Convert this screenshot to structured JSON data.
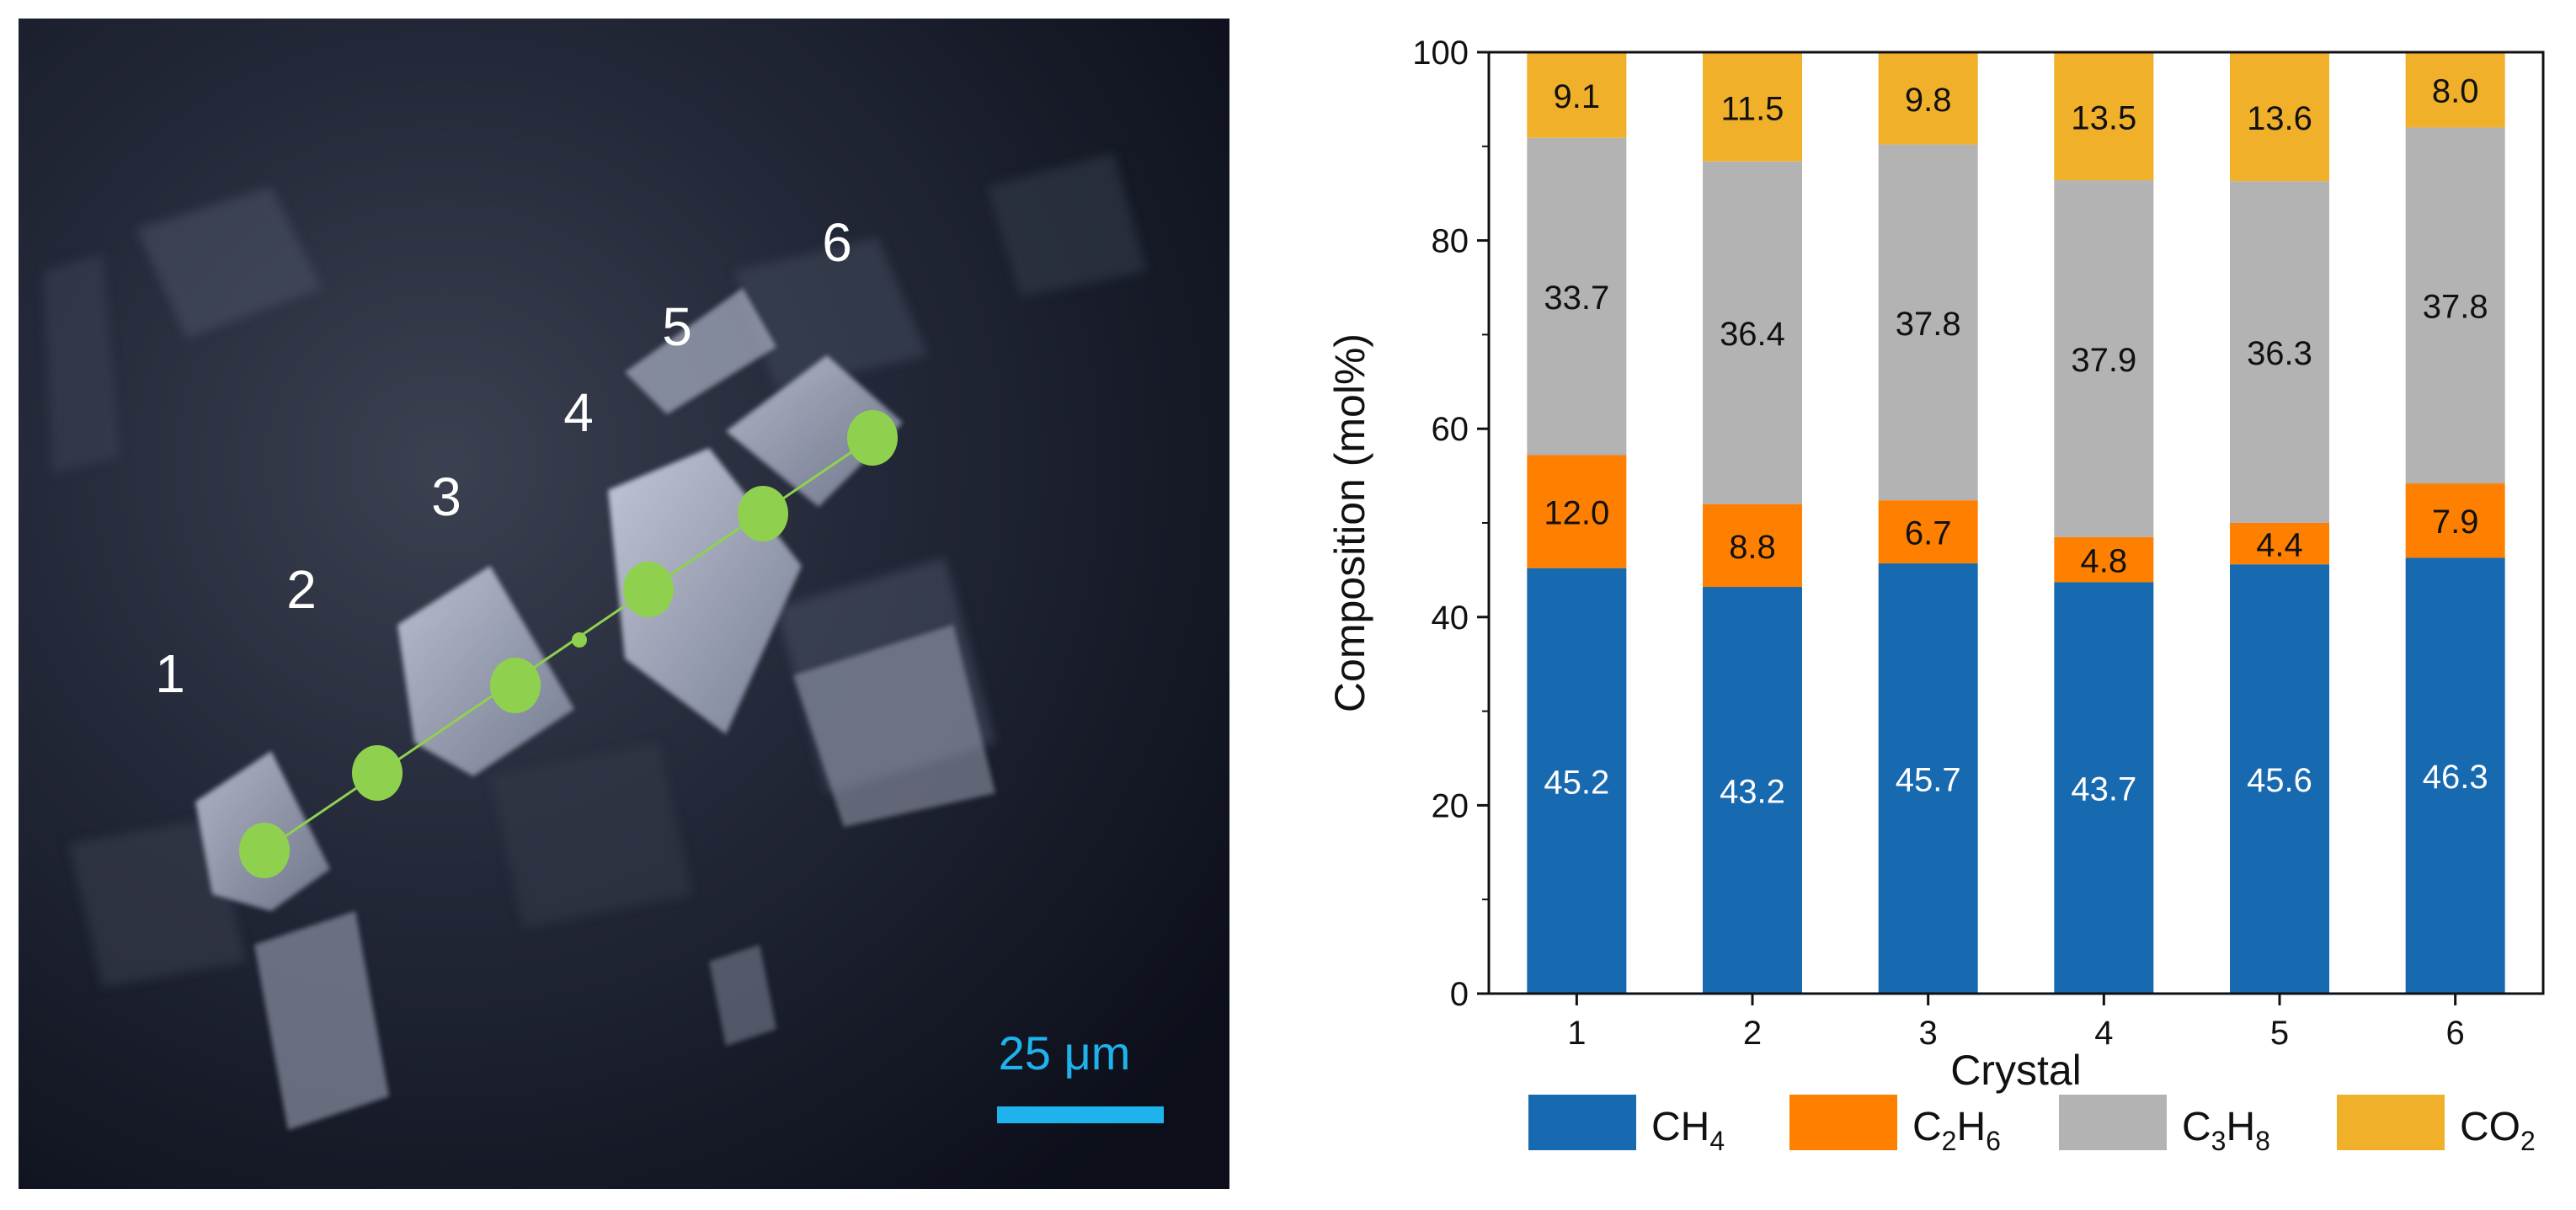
{
  "micrograph": {
    "crystal_labels": [
      "1",
      "2",
      "3",
      "4",
      "5",
      "6"
    ],
    "scale_bar_label": "25 μm",
    "point_color": "#8fd14f",
    "scale_bar_color": "#1fb3ee"
  },
  "chart_data": {
    "type": "bar",
    "stacked": true,
    "categories": [
      "1",
      "2",
      "3",
      "4",
      "5",
      "6"
    ],
    "xlabel": "Crystal",
    "ylabel": "Composition (mol%)",
    "ylim": [
      0,
      100
    ],
    "yticks": [
      "0",
      "20",
      "40",
      "60",
      "80",
      "100"
    ],
    "grid": false,
    "legend_position": "bottom",
    "series": [
      {
        "name": "CH",
        "sub": "4",
        "color": "#1769b0",
        "label_color": "#ffffff",
        "values": [
          45.2,
          43.2,
          45.7,
          43.7,
          45.6,
          46.3
        ],
        "labels": [
          "45.2",
          "43.2",
          "45.7",
          "43.7",
          "45.6",
          "46.3"
        ]
      },
      {
        "name": "C",
        "sub": "2",
        "name2": "H",
        "sub2": "6",
        "color": "#ff8000",
        "label_color": "#111111",
        "values": [
          12.0,
          8.8,
          6.7,
          4.8,
          4.4,
          7.9
        ],
        "labels": [
          "12.0",
          "8.8",
          "6.7",
          "4.8",
          "4.4",
          "7.9"
        ]
      },
      {
        "name": "C",
        "sub": "3",
        "name2": "H",
        "sub2": "8",
        "color": "#b3b3b3",
        "label_color": "#111111",
        "values": [
          33.7,
          36.4,
          37.8,
          37.9,
          36.3,
          37.8
        ],
        "labels": [
          "33.7",
          "36.4",
          "37.8",
          "37.9",
          "36.3",
          "37.8"
        ]
      },
      {
        "name": "CO",
        "sub": "2",
        "color": "#f0b02a",
        "label_color": "#111111",
        "values": [
          9.1,
          11.5,
          9.8,
          13.5,
          13.6,
          8.0
        ],
        "labels": [
          "9.1",
          "11.5",
          "9.8",
          "13.5",
          "13.6",
          "8.0"
        ]
      }
    ]
  }
}
